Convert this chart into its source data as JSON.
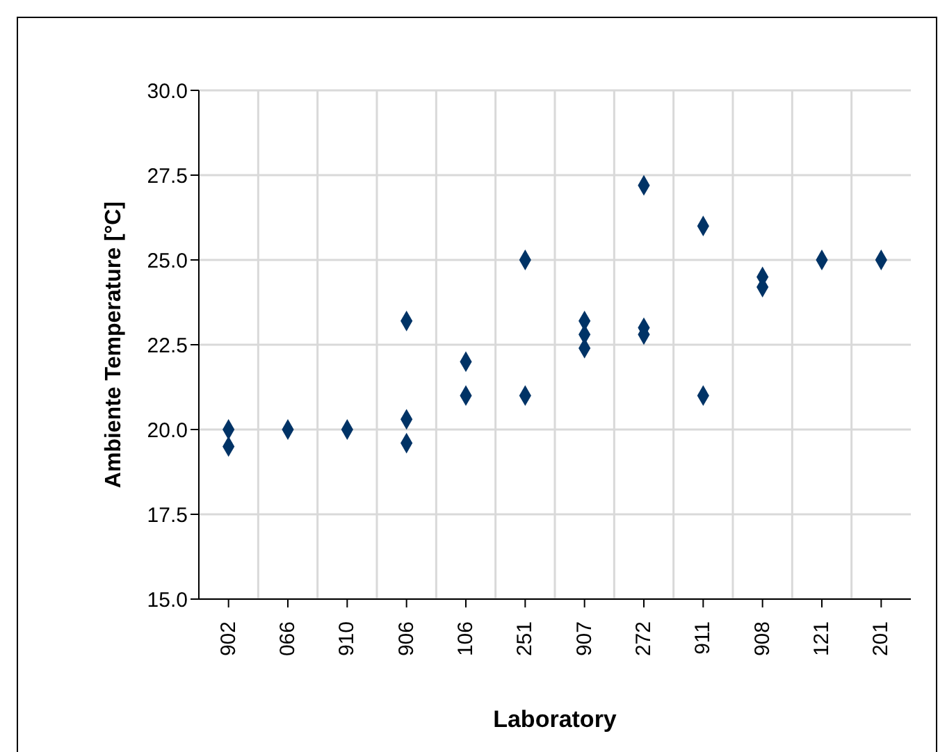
{
  "chart_data": {
    "type": "scatter",
    "xlabel": "Laboratory",
    "ylabel": "Ambiente Temperature [°C]",
    "categories": [
      "902",
      "066",
      "910",
      "906",
      "106",
      "251",
      "907",
      "272",
      "911",
      "908",
      "121",
      "201"
    ],
    "series": [
      {
        "color": "#003366",
        "x": [
          "902",
          "902",
          "066",
          "910",
          "906",
          "906",
          "906",
          "106",
          "106",
          "251",
          "251",
          "907",
          "907",
          "907",
          "272",
          "272",
          "272",
          "911",
          "911",
          "908",
          "908",
          "121",
          "201"
        ],
        "values": [
          20.0,
          19.5,
          20.0,
          20.0,
          23.2,
          20.3,
          19.6,
          22.0,
          21.0,
          25.0,
          21.0,
          23.2,
          22.8,
          22.4,
          27.2,
          23.0,
          22.8,
          26.0,
          21.0,
          24.5,
          24.2,
          25.0,
          25.0
        ]
      }
    ],
    "ylim": [
      15,
      30
    ],
    "yticks": [
      {
        "value": 15,
        "label": "15.0"
      },
      {
        "value": 17.5,
        "label": "17.5"
      },
      {
        "value": 20,
        "label": "20.0"
      },
      {
        "value": 22.5,
        "label": "22.5"
      },
      {
        "value": 25,
        "label": "25.0"
      },
      {
        "value": 27.5,
        "label": "27.5"
      },
      {
        "value": 30,
        "label": "30.0"
      }
    ],
    "grid": true,
    "marker": "diamond",
    "legend": false
  }
}
